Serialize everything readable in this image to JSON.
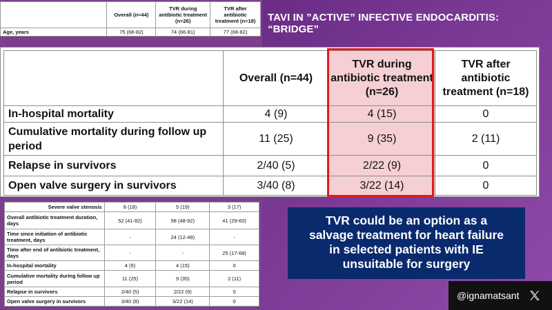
{
  "slide": {
    "title": "TAVI IN ”ACTIVE” INFECTIVE ENDOCARDITIS: “BRIDGE”",
    "callout": [
      "TVR could be an option as a",
      "salvage treatment for heart failure",
      "in selected patients with IE",
      "unsuitable for surgery"
    ],
    "handle": "@ignamatsant",
    "accent_color": "#e0191b",
    "callout_color": "#0a2a6e"
  },
  "top_table": {
    "headers": [
      "",
      "Overall (n=44)",
      "TVR during antibiotic treatment (n=26)",
      "TVR after antibiotic treatment (n=18)"
    ],
    "row": [
      "Age, years",
      "75 (68-82)",
      "74  (66-81)",
      "77 (68-82)"
    ]
  },
  "main_table": {
    "headers": [
      "",
      "Overall (n=44)",
      "TVR during antibiotic treatment (n=26)",
      "TVR after antibiotic treatment (n=18)"
    ],
    "rows": [
      [
        "In-hospital mortality",
        "4 (9)",
        "4 (15)",
        "0"
      ],
      [
        "Cumulative mortality during follow up period",
        "11 (25)",
        "9 (35)",
        "2 (11)"
      ],
      [
        "Relapse in survivors",
        "2/40 (5)",
        "2/22 (9)",
        "0"
      ],
      [
        "Open valve surgery in survivors",
        "3/40 (8)",
        "3/22 (14)",
        "0"
      ]
    ]
  },
  "bottom_table": {
    "rows": [
      [
        "Severe valve stenosis",
        "8 (18)",
        "5 (19)",
        "3 (17)"
      ],
      [
        "Overall antibiotic treatment duration, days",
        "52 (41-82)",
        "58 (48-92)",
        "41 (29-60)"
      ],
      [
        "Time since initiation of antibiotic treatment, days",
        "-",
        "24 (12-49)",
        "-"
      ],
      [
        "Time after end of antibiotic treatment, days",
        "-",
        "-",
        "25 (17-68)"
      ],
      [
        "In-hospital mortality",
        "4 (9)",
        "4 (15)",
        "0"
      ],
      [
        "Cumulative mortality during follow up period",
        "11 (25)",
        "9 (35)",
        "2 (11)"
      ],
      [
        "Relapse in survivors",
        "2/40 (5)",
        "2/22 (9)",
        "0"
      ],
      [
        "Open valve surgery in survivors",
        "3/40 (8)",
        "3/22 (14)",
        "0"
      ]
    ]
  }
}
